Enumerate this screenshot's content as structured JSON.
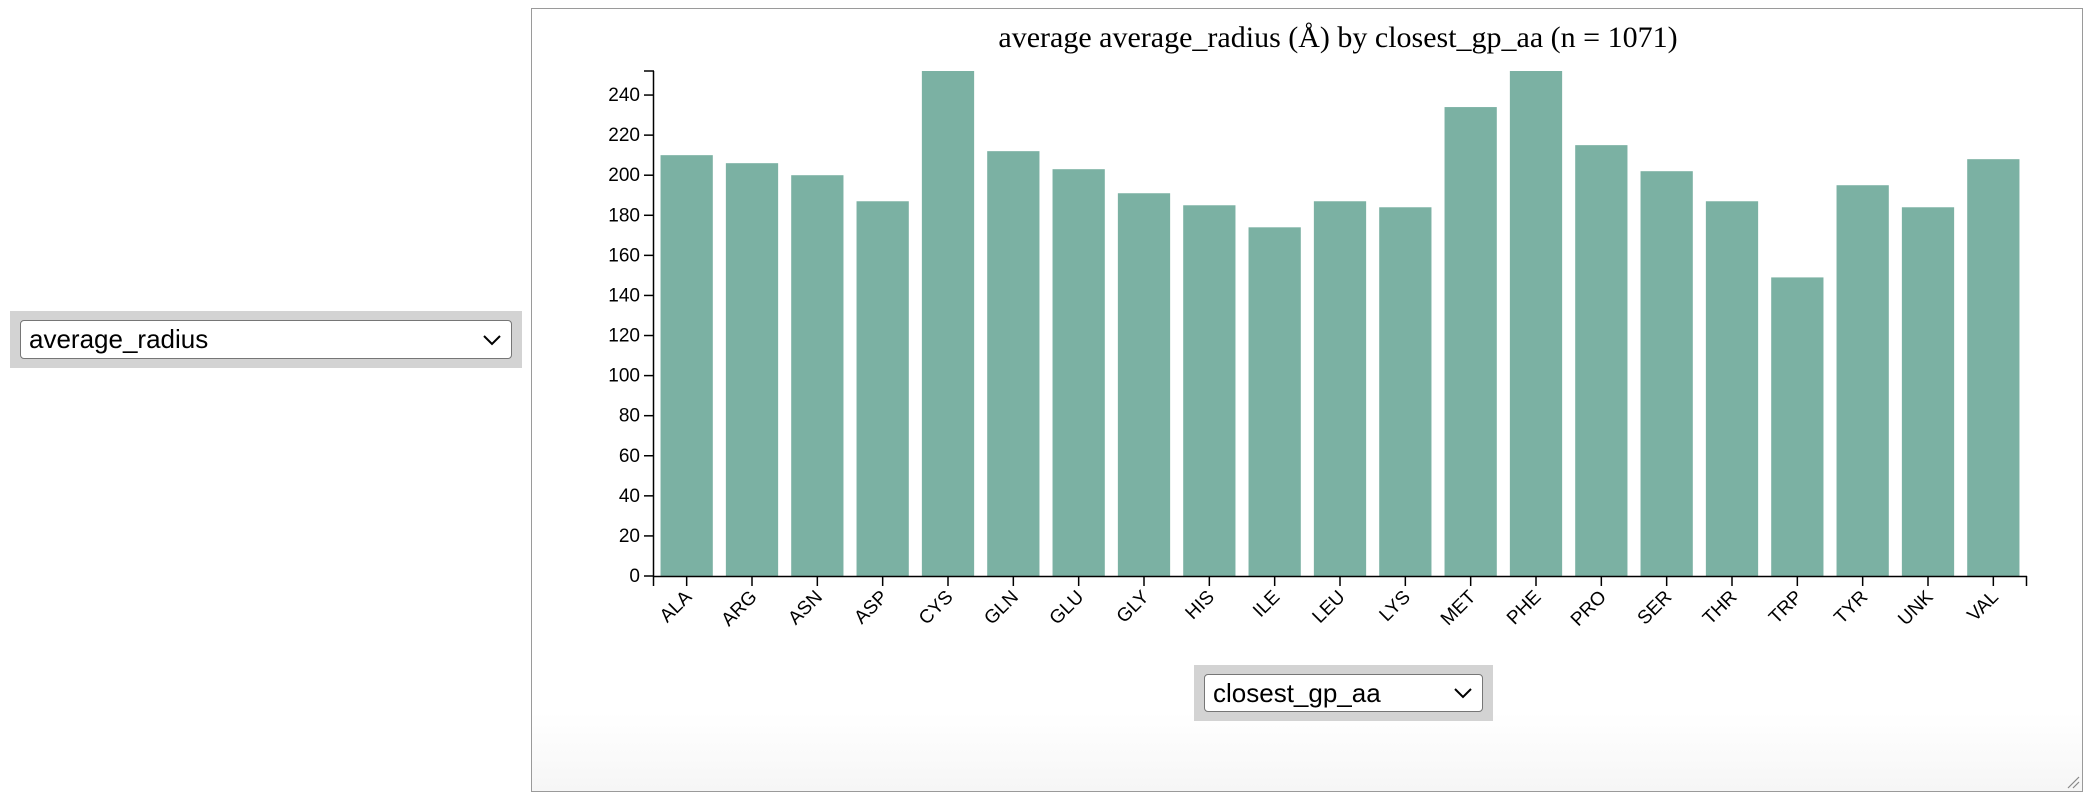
{
  "controls": {
    "y_select": {
      "value": "average_radius"
    },
    "x_select": {
      "value": "closest_gp_aa"
    }
  },
  "colors": {
    "bar": "#7bb1a3",
    "axis": "#000000",
    "control_background": "#d3d3d3"
  },
  "chart_data": {
    "type": "bar",
    "title": "average average_radius (Å) by closest_gp_aa (n = 1071)",
    "xlabel": "",
    "ylabel": "",
    "categories": [
      "ALA",
      "ARG",
      "ASN",
      "ASP",
      "CYS",
      "GLN",
      "GLU",
      "GLY",
      "HIS",
      "ILE",
      "LEU",
      "LYS",
      "MET",
      "PHE",
      "PRO",
      "SER",
      "THR",
      "TRP",
      "TYR",
      "UNK",
      "VAL"
    ],
    "values": [
      210,
      206,
      200,
      187,
      252,
      212,
      203,
      191,
      185,
      174,
      187,
      184,
      234,
      252,
      215,
      202,
      187,
      149,
      195,
      184,
      208
    ],
    "ylim": [
      0,
      252
    ],
    "yticks": [
      0,
      20,
      40,
      60,
      80,
      100,
      120,
      140,
      160,
      180,
      200,
      220,
      240
    ],
    "grid": false,
    "legend": "none"
  }
}
